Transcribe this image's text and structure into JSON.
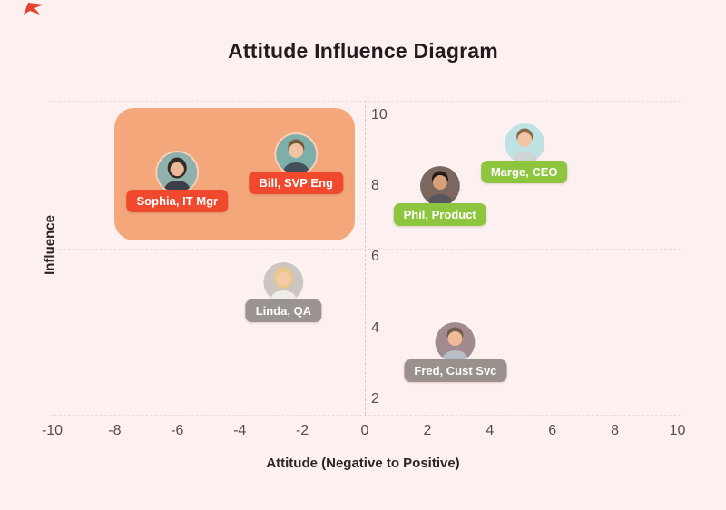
{
  "page": {
    "background_color": "#fdf0f0",
    "corner_mark_color": "#e8432c"
  },
  "chart_data": {
    "type": "scatter",
    "title": "Attitude Influence Diagram",
    "xlabel": "Attitude (Negative to Positive)",
    "ylabel": "Influence",
    "xlim": [
      -10,
      10
    ],
    "ylim": [
      1.5,
      10.5
    ],
    "x_ticks": [
      -10,
      -8,
      -6,
      -4,
      -2,
      0,
      2,
      4,
      6,
      8,
      10
    ],
    "y_ticks": [
      10,
      8,
      6,
      4,
      2
    ],
    "grid": "dashed vertical quadrant line at x=0; dashed horizontal line at y=6.25; dashed top and bottom plot borders",
    "legend": "none",
    "quadrant_lines": {
      "x": 0,
      "y": 6.25
    },
    "highlight_region": {
      "x0": -8.0,
      "x1": -0.32,
      "y0": 6.47,
      "y1": 10.2,
      "color": "#f3a77b",
      "meaning": "highlighted high-influence / negative-attitude group"
    },
    "points": [
      {
        "id": "sophia",
        "name": "Sophia, IT Mgr",
        "x": -6.0,
        "y": 8.4,
        "label_color": "#f0492e",
        "avatar": {
          "bg": "#8fb0ab",
          "hair": "#342a28",
          "skin": "#eab999",
          "shirt": "#3c3f4a",
          "style": "long"
        }
      },
      {
        "id": "bill",
        "name": "Bill, SVP Eng",
        "x": -2.2,
        "y": 8.9,
        "label_color": "#f0492e",
        "avatar": {
          "bg": "#7cafa9",
          "hair": "#7a5a3c",
          "skin": "#f0c4a2",
          "shirt": "#44505a",
          "style": "short"
        }
      },
      {
        "id": "marge",
        "name": "Marge, CEO",
        "x": 5.1,
        "y": 9.2,
        "label_color": "#8dc63e",
        "avatar": {
          "bg": "#bfe2e2",
          "hair": "#8a6848",
          "skin": "#f2c6a4",
          "shirt": "#cfd4d6",
          "style": "short"
        }
      },
      {
        "id": "phil",
        "name": "Phil, Product",
        "x": 2.4,
        "y": 8.0,
        "label_color": "#8dc63e",
        "avatar": {
          "bg": "#7b675f",
          "hair": "#241c1a",
          "skin": "#d9a078",
          "shirt": "#565660",
          "style": "short"
        }
      },
      {
        "id": "linda",
        "name": "Linda, QA",
        "x": -2.6,
        "y": 5.3,
        "label_color": "#9b9390",
        "avatar": {
          "bg": "#cdc5bf",
          "hair": "#e9c88a",
          "skin": "#f4caa8",
          "shirt": "#f0ece7",
          "style": "long"
        }
      },
      {
        "id": "fred",
        "name": "Fred, Cust Svc",
        "x": 2.9,
        "y": 3.6,
        "label_color": "#9a918d",
        "avatar": {
          "bg": "#a18b8e",
          "hair": "#705c50",
          "skin": "#eebb96",
          "shirt": "#b8bcc4",
          "style": "short"
        }
      }
    ]
  }
}
